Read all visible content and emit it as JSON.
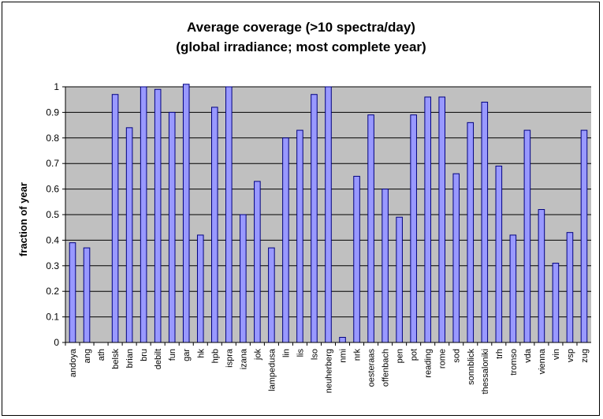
{
  "chart_data": {
    "type": "bar",
    "title": "Average coverage (>10 spectra/day)",
    "subtitle": "(global irradiance; most complete year)",
    "xlabel": "",
    "ylabel": "fraction of year",
    "ylim": [
      0,
      1
    ],
    "yticks": [
      "0",
      "0.1",
      "0.2",
      "0.3",
      "0.4",
      "0.5",
      "0.6",
      "0.7",
      "0.8",
      "0.9",
      "1"
    ],
    "grid": true,
    "legend": "none",
    "categories": [
      "andoya",
      "ang",
      "ath",
      "belsk",
      "brian",
      "bru",
      "debilt",
      "fun",
      "gar",
      "hk",
      "hpb",
      "ispra",
      "izana",
      "jok",
      "lampedusa",
      "lin",
      "lis",
      "lso",
      "neuherberg",
      "nmi",
      "nrk",
      "oesteraas",
      "offenbach",
      "pen",
      "pot",
      "reading",
      "rome",
      "sod",
      "sonnblick",
      "thessaloniki",
      "trh",
      "tromso",
      "vda",
      "vienna",
      "vin",
      "vsp",
      "zug"
    ],
    "values": [
      0.39,
      0.37,
      0,
      0.97,
      0.84,
      1.0,
      0.99,
      0.9,
      1.01,
      0.42,
      0.92,
      1.0,
      0.5,
      0.63,
      0.37,
      0.8,
      0.83,
      0.97,
      1.0,
      0.02,
      0.65,
      0.89,
      0.6,
      0.49,
      0.89,
      0.96,
      0.96,
      0.66,
      0.86,
      0.94,
      0.69,
      0.42,
      0.83,
      0.52,
      0.31,
      0.43,
      0.83
    ],
    "colors": {
      "plot_bg": "#c0c0c0",
      "bar_fill": "#9999ff",
      "bar_stroke": "#000080",
      "grid": "#000000"
    }
  }
}
